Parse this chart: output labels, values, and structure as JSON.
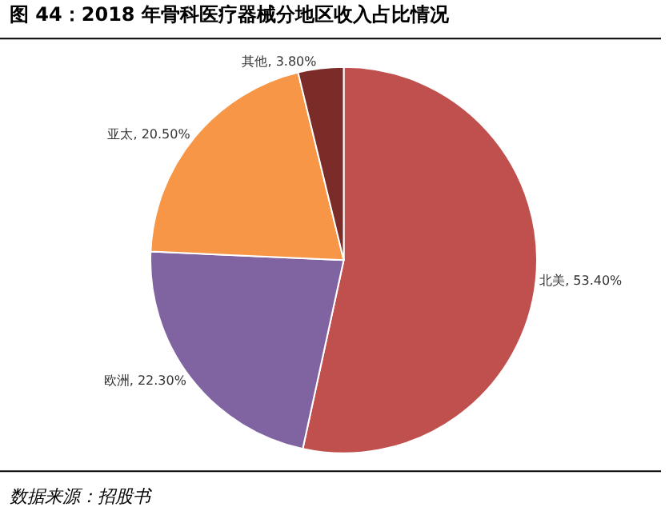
{
  "chart_data": {
    "type": "pie",
    "title": "图 44：2018 年骨科医疗器械分地区收入占比情况",
    "categories": [
      "北美",
      "欧洲",
      "亚太",
      "其他"
    ],
    "values": [
      53.4,
      22.3,
      20.5,
      3.8
    ],
    "colors": [
      "#c0504d",
      "#8064a2",
      "#f79646",
      "#7b2b28"
    ],
    "value_labels": [
      ", 53.40%",
      ", 22.30%",
      ", 20.50%",
      ", 3.80%"
    ],
    "legend": false,
    "annotations": [
      "数据来源：招股书"
    ]
  }
}
